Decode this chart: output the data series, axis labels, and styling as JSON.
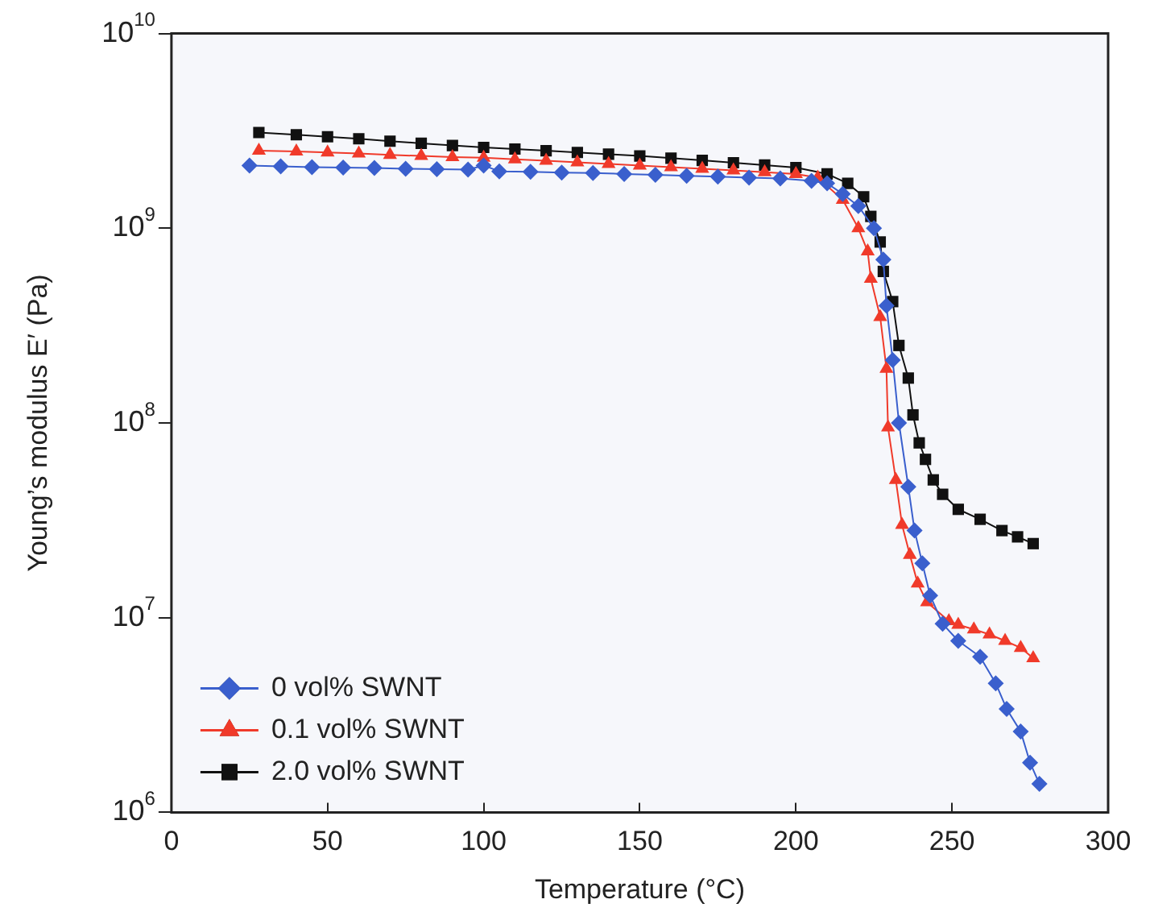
{
  "chart_data": {
    "type": "line",
    "xlabel": "Temperature (°C)",
    "ylabel": "Young’s modulus E′ (Pa)",
    "log": "y",
    "xlim": [
      0,
      300
    ],
    "xticks": [
      0,
      50,
      100,
      150,
      200,
      250,
      300
    ],
    "ylim": [
      1000000.0,
      10000000000.0
    ],
    "yticks": [
      {
        "value": 1000000.0,
        "label": "10$^{6}$"
      },
      {
        "value": 10000000.0,
        "label": "10$^{7}$"
      },
      {
        "value": 100000000.0,
        "label": "10$^{8}$"
      },
      {
        "value": 1000000000.0,
        "label": "10$^{9}$"
      },
      {
        "value": 10000000000.0,
        "label": "10$^{10}$"
      }
    ],
    "grid": false,
    "legend": "bottom left",
    "line_style": "solid",
    "series": [
      {
        "name": "0 vol% SWNT",
        "color": "#3a5fcd",
        "marker": "diamond",
        "x": [
          25,
          35,
          45,
          55,
          65,
          75,
          85,
          95,
          100,
          105,
          115,
          125,
          135,
          145,
          155,
          165,
          175,
          185,
          195,
          205,
          210,
          215,
          220,
          225,
          228,
          229,
          231,
          233,
          236,
          238,
          240.5,
          243,
          247,
          252,
          259,
          264,
          267.5,
          272,
          275,
          278
        ],
        "values": [
          2100000000.0,
          2080000000.0,
          2060000000.0,
          2050000000.0,
          2040000000.0,
          2020000000.0,
          2010000000.0,
          2000000000.0,
          2100000000.0,
          1960000000.0,
          1950000000.0,
          1930000000.0,
          1920000000.0,
          1900000000.0,
          1880000000.0,
          1860000000.0,
          1840000000.0,
          1820000000.0,
          1800000000.0,
          1750000000.0,
          1700000000.0,
          1500000000.0,
          1300000000.0,
          1000000000.0,
          690000000.0,
          400000000.0,
          210000000.0,
          100000000.0,
          47000000.0,
          28000000.0,
          19000000.0,
          13000000.0,
          9300000.0,
          7600000.0,
          6300000.0,
          4600000.0,
          3400000.0,
          2600000.0,
          1800000.0,
          1400000.0
        ]
      },
      {
        "name": "0.1 vol% SWNT",
        "color": "#f03a2a",
        "marker": "triangle",
        "x": [
          28,
          40,
          50,
          60,
          70,
          80,
          90,
          100,
          110,
          120,
          130,
          140,
          150,
          160,
          170,
          180,
          190,
          200,
          207,
          215,
          220,
          223,
          224,
          227,
          229,
          229.5,
          232,
          234,
          236.5,
          239,
          242,
          249,
          252,
          257,
          262,
          267,
          272,
          276
        ],
        "values": [
          2500000000.0,
          2480000000.0,
          2450000000.0,
          2420000000.0,
          2380000000.0,
          2350000000.0,
          2320000000.0,
          2300000000.0,
          2260000000.0,
          2220000000.0,
          2180000000.0,
          2140000000.0,
          2100000000.0,
          2060000000.0,
          2020000000.0,
          1980000000.0,
          1940000000.0,
          1900000000.0,
          1820000000.0,
          1400000000.0,
          1000000000.0,
          760000000.0,
          550000000.0,
          350000000.0,
          190000000.0,
          95000000.0,
          51000000.0,
          30000000.0,
          21000000.0,
          15000000.0,
          12000000.0,
          9600000.0,
          9200000.0,
          8700000.0,
          8200000.0,
          7600000.0,
          7000000.0,
          6200000.0
        ]
      },
      {
        "name": "2.0 vol% SWNT",
        "color": "#111111",
        "marker": "square",
        "x": [
          28,
          40,
          50,
          60,
          70,
          80,
          90,
          100,
          110,
          120,
          130,
          140,
          150,
          160,
          170,
          180,
          190,
          200,
          210,
          216.6,
          221.7,
          224,
          227,
          228,
          231,
          233,
          236,
          237.5,
          239.5,
          241.5,
          244,
          247,
          252,
          259,
          266,
          271,
          276
        ],
        "values": [
          3100000000.0,
          3020000000.0,
          2950000000.0,
          2880000000.0,
          2800000000.0,
          2730000000.0,
          2660000000.0,
          2600000000.0,
          2550000000.0,
          2500000000.0,
          2450000000.0,
          2400000000.0,
          2350000000.0,
          2290000000.0,
          2230000000.0,
          2170000000.0,
          2110000000.0,
          2050000000.0,
          1900000000.0,
          1700000000.0,
          1450000000.0,
          1150000000.0,
          850000000.0,
          600000000.0,
          420000000.0,
          250000000.0,
          170000000.0,
          110000000.0,
          79000000.0,
          65000000.0,
          51000000.0,
          43000000.0,
          36000000.0,
          32000000.0,
          28000000.0,
          26000000.0,
          24000000.0
        ]
      }
    ]
  }
}
